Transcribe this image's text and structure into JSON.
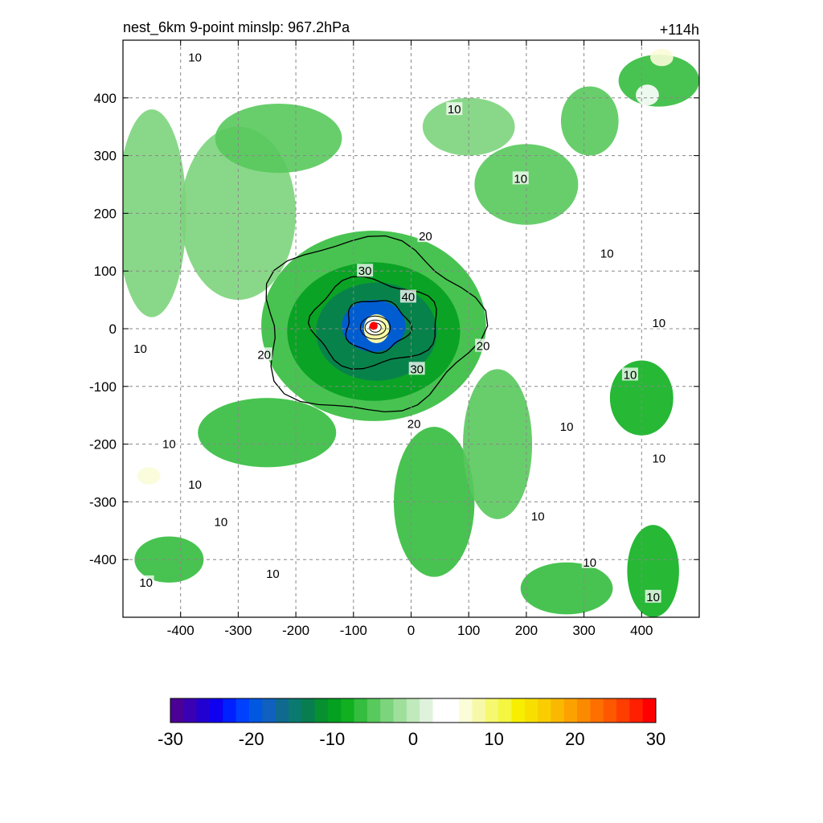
{
  "chart_data": {
    "type": "heatmap",
    "title": "nest_6km  9-point minslp: 967.2hPa",
    "lead_time": "+114h",
    "xlim": [
      -500,
      500
    ],
    "ylim": [
      -500,
      500
    ],
    "x_ticks": [
      -400,
      -300,
      -200,
      -100,
      0,
      100,
      200,
      300,
      400
    ],
    "y_ticks": [
      400,
      300,
      200,
      100,
      0,
      -100,
      -200,
      -300,
      -400
    ],
    "grid": true,
    "grid_style": "dashed",
    "storm_center": {
      "x": -65,
      "y": 5,
      "color": "#ff0000"
    },
    "contour_levels": [
      10,
      20,
      30,
      40
    ],
    "contour_labels": [
      {
        "text": "10",
        "x": -375,
        "y": 470
      },
      {
        "text": "10",
        "x": 75,
        "y": 380
      },
      {
        "text": "10",
        "x": 190,
        "y": 260
      },
      {
        "text": "10",
        "x": 340,
        "y": 130
      },
      {
        "text": "10",
        "x": 430,
        "y": 10
      },
      {
        "text": "10",
        "x": 380,
        "y": -80
      },
      {
        "text": "10",
        "x": -470,
        "y": -35
      },
      {
        "text": "10",
        "x": -420,
        "y": -200
      },
      {
        "text": "10",
        "x": -375,
        "y": -270
      },
      {
        "text": "10",
        "x": 270,
        "y": -170
      },
      {
        "text": "10",
        "x": 430,
        "y": -225
      },
      {
        "text": "10",
        "x": 220,
        "y": -325
      },
      {
        "text": "10",
        "x": 310,
        "y": -405
      },
      {
        "text": "10",
        "x": -330,
        "y": -335
      },
      {
        "text": "10",
        "x": -240,
        "y": -425
      },
      {
        "text": "10",
        "x": -460,
        "y": -440
      },
      {
        "text": "10",
        "x": 420,
        "y": -465
      },
      {
        "text": "20",
        "x": 25,
        "y": 160
      },
      {
        "text": "20",
        "x": 125,
        "y": -30
      },
      {
        "text": "20",
        "x": -255,
        "y": -45
      },
      {
        "text": "20",
        "x": 5,
        "y": -165
      },
      {
        "text": "30",
        "x": -80,
        "y": 100
      },
      {
        "text": "30",
        "x": 10,
        "y": -70
      },
      {
        "text": "40",
        "x": -5,
        "y": 55
      }
    ],
    "colorbar": {
      "min": -30,
      "max": 30,
      "ticks": [
        "-30",
        "-20",
        "-10",
        "0",
        "10",
        "20",
        "30"
      ],
      "colors": [
        "#4b0096",
        "#3a00b4",
        "#2300d2",
        "#0f00f0",
        "#0020ff",
        "#0040ff",
        "#0058e0",
        "#1060c0",
        "#106a90",
        "#0a7a70",
        "#087e50",
        "#069030",
        "#04a020",
        "#10b020",
        "#34bd3e",
        "#58c95c",
        "#7cd47c",
        "#9fdf9c",
        "#c0e9bc",
        "#dff3dc",
        "#ffffff",
        "#ffffff",
        "#fbfcd8",
        "#f8f9a8",
        "#f6f870",
        "#f4f640",
        "#f8ef00",
        "#f9df00",
        "#facd00",
        "#fbb800",
        "#fca200",
        "#fc8a00",
        "#fd7000",
        "#fd5800",
        "#fe3e00",
        "#fe2000",
        "#ff0000"
      ]
    },
    "features": [
      {
        "level": -6,
        "x": -65,
        "y": 5,
        "rx": 195,
        "ry": 165
      },
      {
        "level": -10,
        "x": -65,
        "y": -5,
        "rx": 150,
        "ry": 120
      },
      {
        "level": -14,
        "x": -60,
        "y": -5,
        "rx": 105,
        "ry": 85
      },
      {
        "level": -20,
        "x": -65,
        "y": 5,
        "rx": 55,
        "ry": 45
      },
      {
        "level": -4,
        "x": -300,
        "y": 200,
        "rx": 100,
        "ry": 150
      },
      {
        "level": -5,
        "x": -230,
        "y": 330,
        "rx": 110,
        "ry": 60
      },
      {
        "level": -4,
        "x": 100,
        "y": 350,
        "rx": 80,
        "ry": 50
      },
      {
        "level": -5,
        "x": 200,
        "y": 250,
        "rx": 90,
        "ry": 70
      },
      {
        "level": -6,
        "x": -250,
        "y": -180,
        "rx": 120,
        "ry": 60
      },
      {
        "level": -7,
        "x": 40,
        "y": -300,
        "rx": 70,
        "ry": 130
      },
      {
        "level": -5,
        "x": 150,
        "y": -200,
        "rx": 60,
        "ry": 130
      },
      {
        "level": -8,
        "x": 400,
        "y": -120,
        "rx": 55,
        "ry": 65
      },
      {
        "level": -6,
        "x": -420,
        "y": -400,
        "rx": 60,
        "ry": 40
      },
      {
        "level": -7,
        "x": 270,
        "y": -450,
        "rx": 80,
        "ry": 45
      },
      {
        "level": -8,
        "x": 420,
        "y": -420,
        "rx": 45,
        "ry": 80
      },
      {
        "level": -4,
        "x": -450,
        "y": 200,
        "rx": 60,
        "ry": 180
      },
      {
        "level": -5,
        "x": 310,
        "y": 360,
        "rx": 50,
        "ry": 60
      },
      {
        "level": -6,
        "x": 430,
        "y": 430,
        "rx": 70,
        "ry": 45
      },
      {
        "level": 6,
        "x": 435,
        "y": 470,
        "rx": 20,
        "ry": 15
      },
      {
        "level": 4,
        "x": 410,
        "y": 405,
        "rx": 20,
        "ry": 18
      },
      {
        "level": 6,
        "x": -455,
        "y": -255,
        "rx": 20,
        "ry": 15
      },
      {
        "level": 5,
        "x": 435,
        "y": -200,
        "rx": 12,
        "ry": 15
      },
      {
        "level": 4,
        "x": -430,
        "y": -450,
        "rx": 15,
        "ry": 10
      },
      {
        "level": 3,
        "x": 100,
        "y": -440,
        "rx": 25,
        "ry": 15
      }
    ],
    "core_contours": [
      {
        "level": 20,
        "rx": 185,
        "ry": 150,
        "dx": -10,
        "dy": 0
      },
      {
        "level": 30,
        "rx": 110,
        "ry": 75,
        "dx": 0,
        "dy": 5
      },
      {
        "level": 40,
        "rx": 55,
        "ry": 45,
        "dx": 5,
        "dy": 0
      }
    ]
  }
}
